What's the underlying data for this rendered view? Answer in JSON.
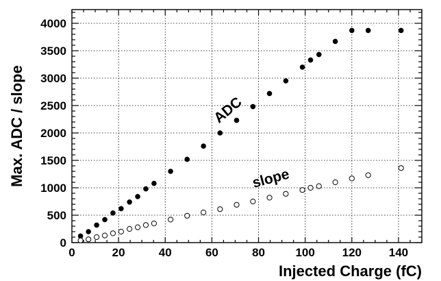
{
  "chart_data": {
    "type": "scatter",
    "xlabel": "Injected Charge (fC)",
    "ylabel": "Max. ADC / slope",
    "xlim": [
      0,
      150
    ],
    "ylim": [
      0,
      4250
    ],
    "x_ticks": [
      0,
      20,
      40,
      60,
      80,
      100,
      120,
      140
    ],
    "y_ticks": [
      0,
      500,
      1000,
      1500,
      2000,
      2500,
      3000,
      3500,
      4000
    ],
    "grid": true,
    "series": [
      {
        "name": "ADC",
        "marker": "filled-circle",
        "x": [
          3.7,
          7.1,
          10.6,
          14.1,
          17.6,
          21.1,
          24.7,
          28.2,
          31.7,
          35.2,
          42.3,
          49.4,
          56.4,
          63.5,
          70.6,
          77.6,
          84.7,
          91.7,
          98.8,
          102.3,
          105.9,
          112.9,
          120.0,
          127.0,
          141.1
        ],
        "y": [
          120,
          200,
          320,
          420,
          540,
          620,
          740,
          840,
          980,
          1080,
          1300,
          1520,
          1760,
          2000,
          2230,
          2480,
          2720,
          2950,
          3200,
          3330,
          3430,
          3670,
          3870,
          3870,
          3870
        ]
      },
      {
        "name": "slope",
        "marker": "open-circle",
        "x": [
          3.7,
          7.1,
          10.6,
          14.1,
          17.6,
          21.1,
          24.7,
          28.2,
          31.7,
          35.2,
          42.3,
          49.4,
          56.4,
          63.5,
          70.6,
          77.6,
          84.7,
          91.7,
          98.8,
          102.3,
          105.9,
          112.9,
          120.0,
          127.0,
          141.1
        ],
        "y": [
          40,
          60,
          100,
          130,
          170,
          200,
          250,
          280,
          320,
          350,
          420,
          490,
          550,
          610,
          690,
          750,
          820,
          890,
          960,
          1000,
          1030,
          1100,
          1170,
          1230,
          1360
        ]
      }
    ],
    "annotations": [
      {
        "text": "ADC",
        "x": 63,
        "y": 2170,
        "rotation": -40
      },
      {
        "text": "slope",
        "x": 78,
        "y": 1000,
        "rotation": -15
      }
    ]
  }
}
